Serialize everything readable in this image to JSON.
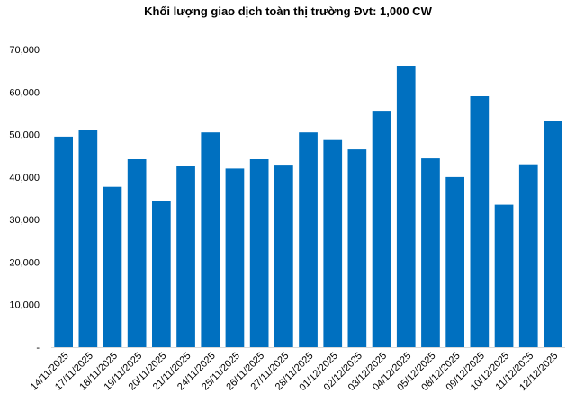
{
  "chart_data": {
    "type": "bar",
    "title": "Khối lượng giao dịch toàn thị trường Đvt: 1,000 CW",
    "xlabel": "",
    "ylabel": "",
    "ylim": [
      0,
      70000
    ],
    "yticks": [
      "-",
      "10,000",
      "20,000",
      "30,000",
      "40,000",
      "50,000",
      "60,000",
      "70,000"
    ],
    "grid": false,
    "legend": "none",
    "bar_color": "#0070C0",
    "categories": [
      "14/11/2025",
      "17/11/2025",
      "18/11/2025",
      "19/11/2025",
      "20/11/2025",
      "21/11/2025",
      "24/11/2025",
      "25/11/2025",
      "26/11/2025",
      "27/11/2025",
      "28/11/2025",
      "01/12/2025",
      "02/12/2025",
      "03/12/2025",
      "04/12/2025",
      "05/12/2025",
      "08/12/2025",
      "09/12/2025",
      "10/12/2025",
      "11/12/2025",
      "12/12/2025"
    ],
    "values": [
      49500,
      51000,
      37700,
      44200,
      34300,
      42500,
      50500,
      42000,
      44200,
      42700,
      50500,
      48700,
      46500,
      55600,
      66200,
      44400,
      40000,
      59000,
      33500,
      43000,
      53300
    ]
  }
}
